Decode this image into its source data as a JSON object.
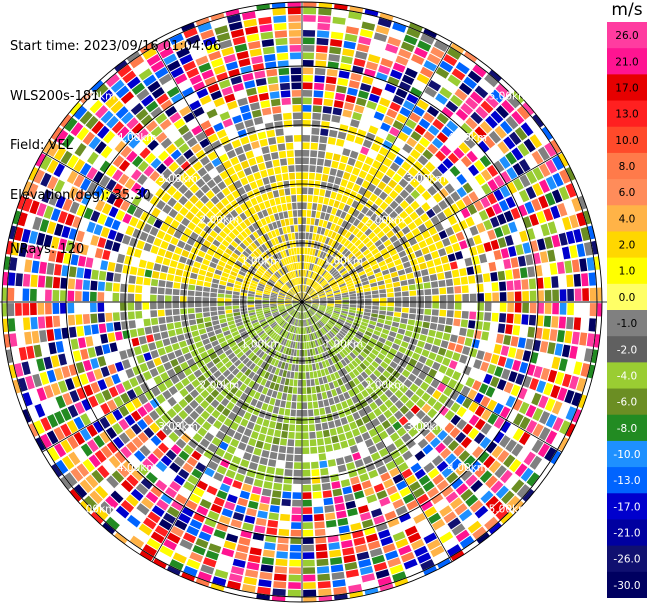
{
  "header": {
    "start_time": "Start time: 2023/09/16 01:04:06",
    "site": "WLS200s-181",
    "field": "Field: VEL",
    "elevation": "Elevation(deg): 35.30",
    "nrays": "NRays: 120"
  },
  "colorbar": {
    "unit": "m/s",
    "ticks": [
      "26.0",
      "21.0",
      "17.0",
      "13.0",
      "10.0",
      "8.0",
      "6.0",
      "4.0",
      "2.0",
      "1.0",
      "0.0",
      "-1.0",
      "-2.0",
      "-4.0",
      "-6.0",
      "-8.0",
      "-10.0",
      "-13.0",
      "-17.0",
      "-21.0",
      "-26.0",
      "-30.0"
    ],
    "colors": [
      "#ff3ca0",
      "#ff1491",
      "#e60000",
      "#ff2020",
      "#ff4a2a",
      "#ff7a4a",
      "#ff8c5a",
      "#ffb347",
      "#ffd700",
      "#ffff00",
      "#ffff66",
      "#808080",
      "#606060",
      "#9acd32",
      "#6b8e23",
      "#228b22",
      "#1e90ff",
      "#0064ff",
      "#0000cd",
      "#0000a0",
      "#101070",
      "#000060"
    ]
  },
  "rings": {
    "labels_upper": [
      "1.00km",
      "2.00km",
      "3.00km",
      "4.00km",
      "5.00km"
    ],
    "labels_lower": [
      "1.00km",
      "2.00km",
      "3.00km",
      "4.00km",
      "5.00km"
    ]
  }
}
